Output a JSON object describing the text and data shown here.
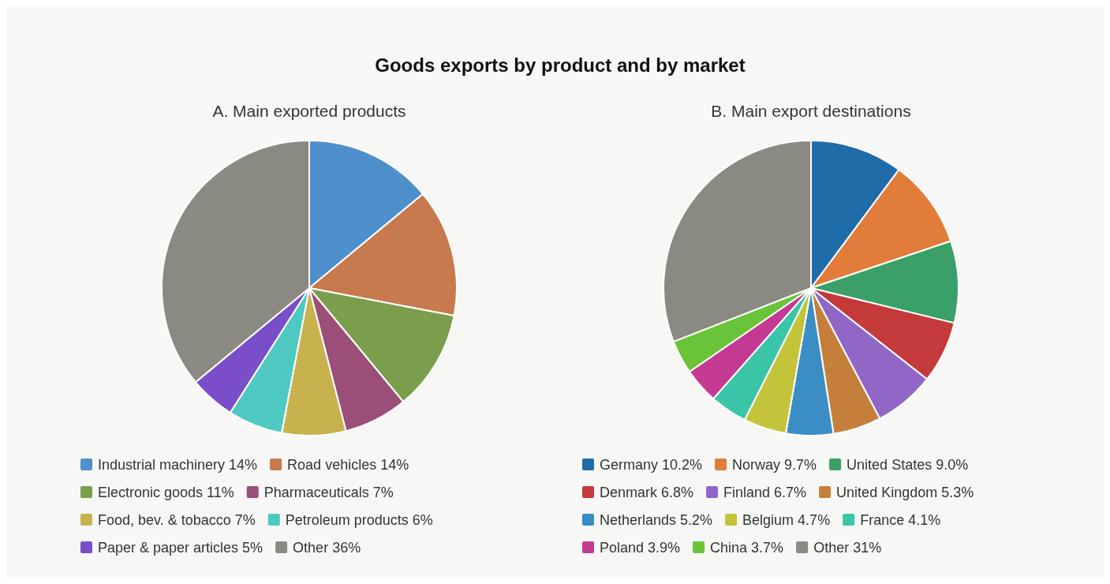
{
  "chart_data": [
    {
      "type": "pie",
      "title": "Goods exports by product and by market",
      "subtitle": "A. Main exported products",
      "legend": "bottom",
      "categories": [
        "Industrial machinery",
        "Road vehicles",
        "Electronic goods",
        "Pharmaceuticals",
        "Food, bev. & tobacco",
        "Petroleum products",
        "Paper & paper articles",
        "Other"
      ],
      "values": [
        14,
        14,
        11,
        7,
        7,
        6,
        5,
        36
      ],
      "value_labels": [
        "14%",
        "14%",
        "11%",
        "7%",
        "7%",
        "6%",
        "5%",
        "36%"
      ],
      "colors": [
        "#4f8fcc",
        "#c8794e",
        "#7a9e4c",
        "#9b4e78",
        "#c8b24e",
        "#4ec8c2",
        "#7a4ec8",
        "#8a8a82"
      ]
    },
    {
      "type": "pie",
      "subtitle": "B. Main export destinations",
      "legend": "bottom",
      "categories": [
        "Germany",
        "Norway",
        "United States",
        "Denmark",
        "Finland",
        "United Kingdom",
        "Netherlands",
        "Belgium",
        "France",
        "Poland",
        "China",
        "Other"
      ],
      "values": [
        10.2,
        9.7,
        9.0,
        6.8,
        6.7,
        5.3,
        5.2,
        4.7,
        4.1,
        3.9,
        3.7,
        31
      ],
      "value_labels": [
        "10.2%",
        "9.7%",
        "9.0%",
        "6.8%",
        "6.7%",
        "5.3%",
        "5.2%",
        "4.7%",
        "4.1%",
        "3.9%",
        "3.7%",
        "31%"
      ],
      "colors": [
        "#1f6ca8",
        "#e27c3a",
        "#3aa068",
        "#c43a3a",
        "#9067c6",
        "#c4803a",
        "#3a8ec4",
        "#c4c43a",
        "#3ac4a8",
        "#c43a92",
        "#6ac43a",
        "#8a8a82"
      ]
    }
  ]
}
